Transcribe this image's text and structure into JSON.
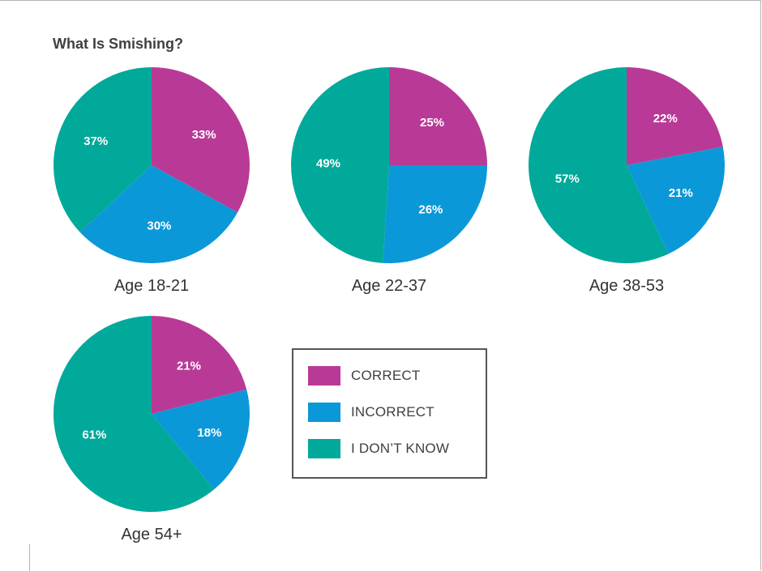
{
  "chart_data": {
    "type": "pie",
    "title": "What Is Smishing?",
    "categories": [
      "CORRECT",
      "INCORRECT",
      "I DON’T KNOW"
    ],
    "colors": {
      "CORRECT": "#b93a96",
      "INCORRECT": "#0b98d8",
      "I DON’T KNOW": "#00a99a"
    },
    "legend_position": "center-right of bottom row",
    "pies": [
      {
        "label": "Age 18-21",
        "values": [
          33,
          30,
          37
        ],
        "value_labels": [
          "33%",
          "30%",
          "37%"
        ]
      },
      {
        "label": "Age 22-37",
        "values": [
          25,
          26,
          49
        ],
        "value_labels": [
          "25%",
          "26%",
          "49%"
        ]
      },
      {
        "label": "Age 38-53",
        "values": [
          22,
          21,
          57
        ],
        "value_labels": [
          "22%",
          "21%",
          "57%"
        ]
      },
      {
        "label": "Age 54+",
        "values": [
          21,
          18,
          61
        ],
        "value_labels": [
          "21%",
          "18%",
          "61%"
        ]
      }
    ]
  }
}
